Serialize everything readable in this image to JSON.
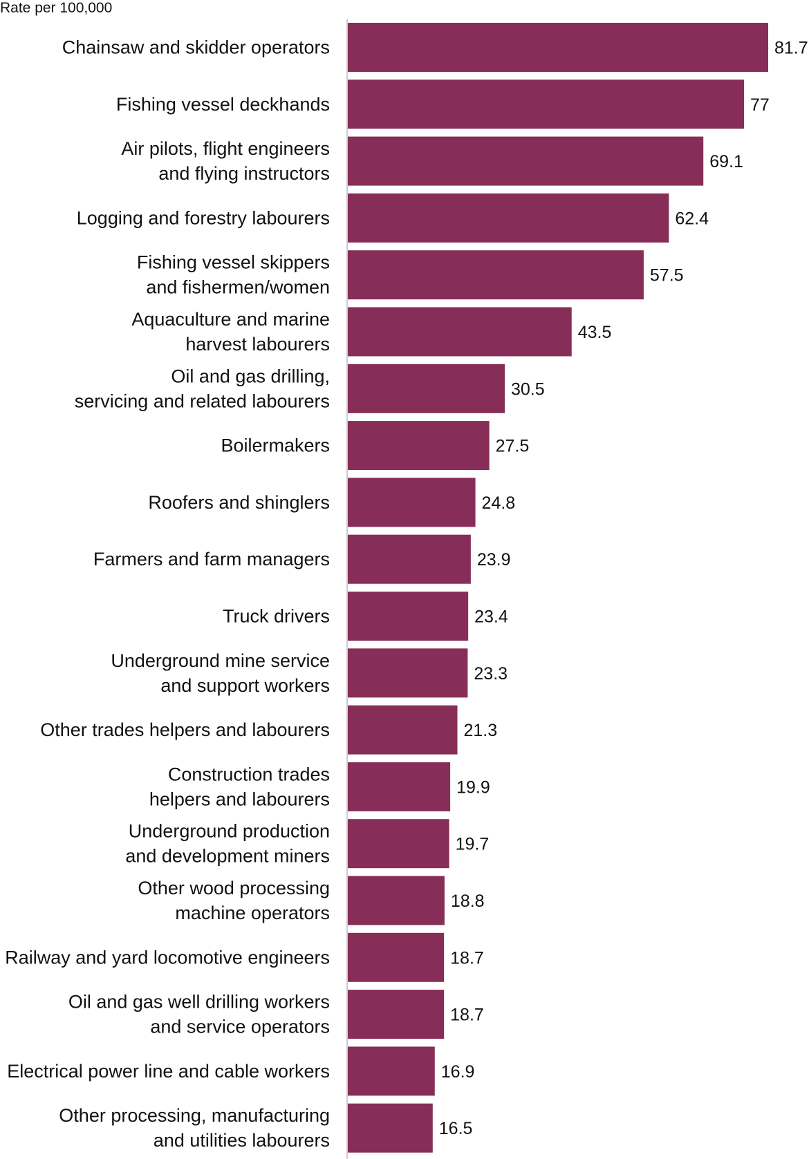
{
  "chart_data": {
    "type": "bar",
    "orientation": "horizontal",
    "ylabel": "Rate per 100,000",
    "bar_color": "#872e58",
    "grid": false,
    "categories": [
      [
        "Chainsaw and skidder operators"
      ],
      [
        "Fishing vessel deckhands"
      ],
      [
        "Air pilots, flight engineers",
        "and flying instructors"
      ],
      [
        "Logging and forestry labourers"
      ],
      [
        "Fishing vessel skippers",
        "and fishermen/women"
      ],
      [
        "Aquaculture and marine",
        "harvest labourers"
      ],
      [
        "Oil and gas drilling,",
        "servicing and related labourers"
      ],
      [
        "Boilermakers"
      ],
      [
        "Roofers and shinglers"
      ],
      [
        "Farmers and farm managers"
      ],
      [
        "Truck drivers"
      ],
      [
        "Underground mine service",
        "and support workers"
      ],
      [
        "Other trades helpers and labourers"
      ],
      [
        "Construction trades",
        "helpers and labourers"
      ],
      [
        "Underground production",
        "and development miners"
      ],
      [
        "Other wood processing",
        "machine operators"
      ],
      [
        "Railway and yard locomotive engineers"
      ],
      [
        "Oil and gas well drilling workers",
        "and service operators"
      ],
      [
        "Electrical power line and cable workers"
      ],
      [
        "Other processing, manufacturing",
        "and utilities labourers"
      ]
    ],
    "values": [
      81.7,
      77,
      69.1,
      62.4,
      57.5,
      43.5,
      30.5,
      27.5,
      24.8,
      23.9,
      23.4,
      23.3,
      21.3,
      19.9,
      19.7,
      18.8,
      18.7,
      18.7,
      16.9,
      16.5
    ],
    "value_labels": [
      "81.7",
      "77",
      "69.1",
      "62.4",
      "57.5",
      "43.5",
      "30.5",
      "27.5",
      "24.8",
      "23.9",
      "23.4",
      "23.3",
      "21.3",
      "19.9",
      "19.7",
      "18.8",
      "18.7",
      "18.7",
      "16.9",
      "16.5"
    ]
  }
}
